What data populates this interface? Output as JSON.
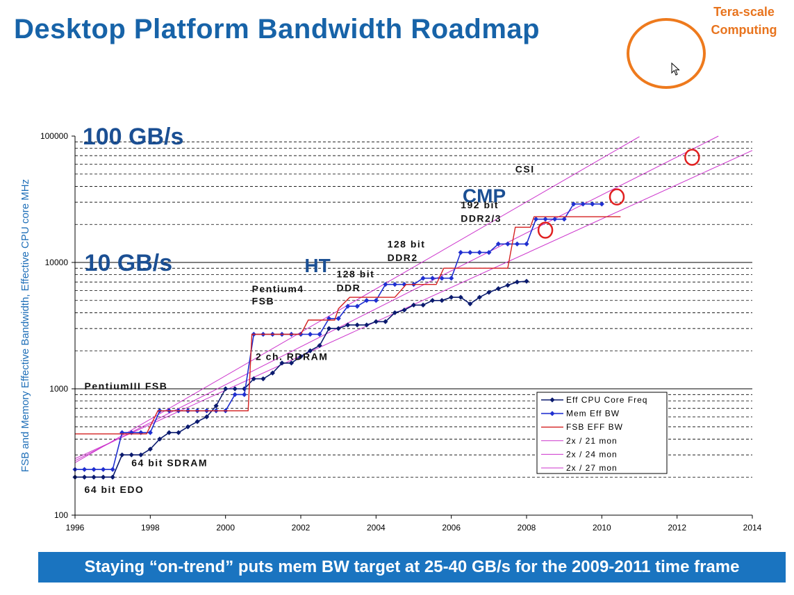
{
  "slide": {
    "title": "Desktop Platform Bandwidth Roadmap",
    "tera_label_1": "Tera-scale",
    "tera_label_2": "Computing",
    "footer": "Staying “on-trend” puts mem BW target at 25-40 GB/s for the 2009-2011 time frame"
  },
  "colors": {
    "title": "#1763a8",
    "accent_orange": "#ee7a1d",
    "cpu_series": "#0a1a6e",
    "mem_series": "#1f2fd0",
    "fsb_series": "#d42020",
    "trend": "#cc33cc",
    "red_circle": "#e02020"
  },
  "chart_data": {
    "type": "line",
    "title": "",
    "xlabel": "",
    "ylabel": "FSB and Memory Effective Bandwidth, Effective CPU core MHz",
    "yscale": "log",
    "xlim": [
      1996,
      2014
    ],
    "ylim": [
      100,
      100000
    ],
    "x_ticks": [
      "1996",
      "1998",
      "2000",
      "2002",
      "2004",
      "2006",
      "2008",
      "2010",
      "2012",
      "2014"
    ],
    "y_ticks": [
      "100",
      "1000",
      "10000",
      "100000"
    ],
    "series": [
      {
        "name": "Eff CPU Core Freq",
        "marker": "diamond",
        "points": [
          [
            1996,
            200
          ],
          [
            1996.25,
            200
          ],
          [
            1996.5,
            200
          ],
          [
            1996.75,
            200
          ],
          [
            1997,
            200
          ],
          [
            1997.25,
            300
          ],
          [
            1997.5,
            300
          ],
          [
            1997.75,
            300
          ],
          [
            1998,
            333
          ],
          [
            1998.25,
            400
          ],
          [
            1998.5,
            450
          ],
          [
            1998.75,
            450
          ],
          [
            1999,
            500
          ],
          [
            1999.25,
            550
          ],
          [
            1999.5,
            600
          ],
          [
            1999.75,
            733
          ],
          [
            2000,
            1000
          ],
          [
            2000.25,
            1000
          ],
          [
            2000.5,
            1000
          ],
          [
            2000.75,
            1200
          ],
          [
            2001,
            1200
          ],
          [
            2001.25,
            1333
          ],
          [
            2001.5,
            1600
          ],
          [
            2001.75,
            1600
          ],
          [
            2002,
            1800
          ],
          [
            2002.25,
            2000
          ],
          [
            2002.5,
            2200
          ],
          [
            2002.75,
            3000
          ],
          [
            2003,
            3000
          ],
          [
            2003.25,
            3200
          ],
          [
            2003.5,
            3200
          ],
          [
            2003.75,
            3200
          ],
          [
            2004,
            3400
          ],
          [
            2004.25,
            3400
          ],
          [
            2004.5,
            4000
          ],
          [
            2004.75,
            4200
          ],
          [
            2005,
            4600
          ],
          [
            2005.25,
            4600
          ],
          [
            2005.5,
            5000
          ],
          [
            2005.75,
            5000
          ],
          [
            2006,
            5300
          ],
          [
            2006.25,
            5300
          ],
          [
            2006.5,
            4700
          ],
          [
            2006.75,
            5300
          ],
          [
            2007,
            5800
          ],
          [
            2007.25,
            6200
          ],
          [
            2007.5,
            6600
          ],
          [
            2007.75,
            7000
          ],
          [
            2008,
            7100
          ]
        ]
      },
      {
        "name": "Mem Eff BW",
        "marker": "diamond",
        "points": [
          [
            1996,
            230
          ],
          [
            1996.25,
            230
          ],
          [
            1996.5,
            230
          ],
          [
            1996.75,
            230
          ],
          [
            1997,
            230
          ],
          [
            1997.25,
            450
          ],
          [
            1997.5,
            450
          ],
          [
            1997.75,
            450
          ],
          [
            1998,
            450
          ],
          [
            1998.25,
            670
          ],
          [
            1998.5,
            670
          ],
          [
            1998.75,
            670
          ],
          [
            1999,
            670
          ],
          [
            1999.25,
            670
          ],
          [
            1999.5,
            670
          ],
          [
            1999.75,
            670
          ],
          [
            2000,
            670
          ],
          [
            2000.25,
            900
          ],
          [
            2000.5,
            900
          ],
          [
            2000.75,
            2700
          ],
          [
            2001,
            2700
          ],
          [
            2001.25,
            2700
          ],
          [
            2001.5,
            2700
          ],
          [
            2001.75,
            2700
          ],
          [
            2002,
            2700
          ],
          [
            2002.25,
            2700
          ],
          [
            2002.5,
            2700
          ],
          [
            2002.75,
            3600
          ],
          [
            2003,
            3600
          ],
          [
            2003.25,
            4500
          ],
          [
            2003.5,
            4500
          ],
          [
            2003.75,
            5000
          ],
          [
            2004,
            5000
          ],
          [
            2004.25,
            6700
          ],
          [
            2004.5,
            6700
          ],
          [
            2004.75,
            6700
          ],
          [
            2005,
            6700
          ],
          [
            2005.25,
            7500
          ],
          [
            2005.5,
            7500
          ],
          [
            2005.75,
            7500
          ],
          [
            2006,
            7500
          ],
          [
            2006.25,
            12000
          ],
          [
            2006.5,
            12000
          ],
          [
            2006.75,
            12000
          ],
          [
            2007,
            12000
          ],
          [
            2007.25,
            14000
          ],
          [
            2007.5,
            14000
          ],
          [
            2007.75,
            14000
          ],
          [
            2008,
            14000
          ],
          [
            2008.25,
            22000
          ],
          [
            2008.5,
            22000
          ],
          [
            2008.75,
            22000
          ],
          [
            2009,
            22000
          ],
          [
            2009.25,
            29000
          ],
          [
            2009.5,
            29000
          ],
          [
            2009.75,
            29000
          ],
          [
            2010,
            29000
          ]
        ]
      },
      {
        "name": "FSB EFF BW",
        "marker": "none",
        "points": [
          [
            1996,
            440
          ],
          [
            1997.3,
            440
          ],
          [
            1997.9,
            440
          ],
          [
            1998.2,
            670
          ],
          [
            2000.6,
            670
          ],
          [
            2000.7,
            2700
          ],
          [
            2002.0,
            2700
          ],
          [
            2002.2,
            3500
          ],
          [
            2002.9,
            3500
          ],
          [
            2003.0,
            4300
          ],
          [
            2003.3,
            5300
          ],
          [
            2004.5,
            5300
          ],
          [
            2004.8,
            6700
          ],
          [
            2005.6,
            6700
          ],
          [
            2005.8,
            9000
          ],
          [
            2007.5,
            9000
          ],
          [
            2007.7,
            19000
          ],
          [
            2008.1,
            19000
          ],
          [
            2008.2,
            23000
          ],
          [
            2010.5,
            23000
          ]
        ]
      },
      {
        "name": "2x / 21 mon",
        "marker": "none",
        "points": [
          [
            1996,
            260
          ],
          [
            2011.0,
            99000
          ]
        ]
      },
      {
        "name": "2x / 24 mon",
        "marker": "none",
        "points": [
          [
            1996,
            270
          ],
          [
            2013.1,
            100000
          ]
        ]
      },
      {
        "name": "2x / 27 mon",
        "marker": "none",
        "points": [
          [
            1996,
            280
          ],
          [
            2014.0,
            77000
          ]
        ]
      }
    ],
    "annotations": [
      {
        "text": "100 GB/s",
        "x": 1996.2,
        "y": 100000
      },
      {
        "text": "10 GB/s",
        "x": 1996.25,
        "y": 10000
      },
      {
        "text": "CMP",
        "x": 2006.3,
        "y": 34000
      },
      {
        "text": "HT",
        "x": 2002.1,
        "y": 9500
      },
      {
        "text": "CSI",
        "x": 2007.7,
        "y": 55000
      },
      {
        "text": "192 bit",
        "x": 2006.25,
        "y": 28500
      },
      {
        "text": "DDR2/3",
        "x": 2006.25,
        "y": 22400
      },
      {
        "text": "128 bit",
        "x": 2004.3,
        "y": 14000
      },
      {
        "text": "DDR2",
        "x": 2004.3,
        "y": 10900
      },
      {
        "text": "128 bit",
        "x": 2002.95,
        "y": 8100
      },
      {
        "text": "DDR",
        "x": 2002.95,
        "y": 6300
      },
      {
        "text": "Pentium4",
        "x": 2000.7,
        "y": 6200
      },
      {
        "text": "FSB",
        "x": 2000.7,
        "y": 4950
      },
      {
        "text": "2 ch. RDRAM",
        "x": 2000.8,
        "y": 1800
      },
      {
        "text": "PentiumIII FSB",
        "x": 1996.25,
        "y": 1050
      },
      {
        "text": "64 bit SDRAM",
        "x": 1997.5,
        "y": 260
      },
      {
        "text": "64 bit EDO",
        "x": 1996.25,
        "y": 160
      }
    ],
    "highlight_circles": [
      {
        "x": 2008.5,
        "y": 18000
      },
      {
        "x": 2010.4,
        "y": 33000
      },
      {
        "x": 2012.4,
        "y": 68000
      }
    ],
    "legend": {
      "position": "bottom-right",
      "entries": [
        "Eff CPU Core Freq",
        "Mem Eff BW",
        "FSB EFF BW",
        "2x / 21 mon",
        "2x / 24 mon",
        "2x / 27 mon"
      ]
    }
  }
}
